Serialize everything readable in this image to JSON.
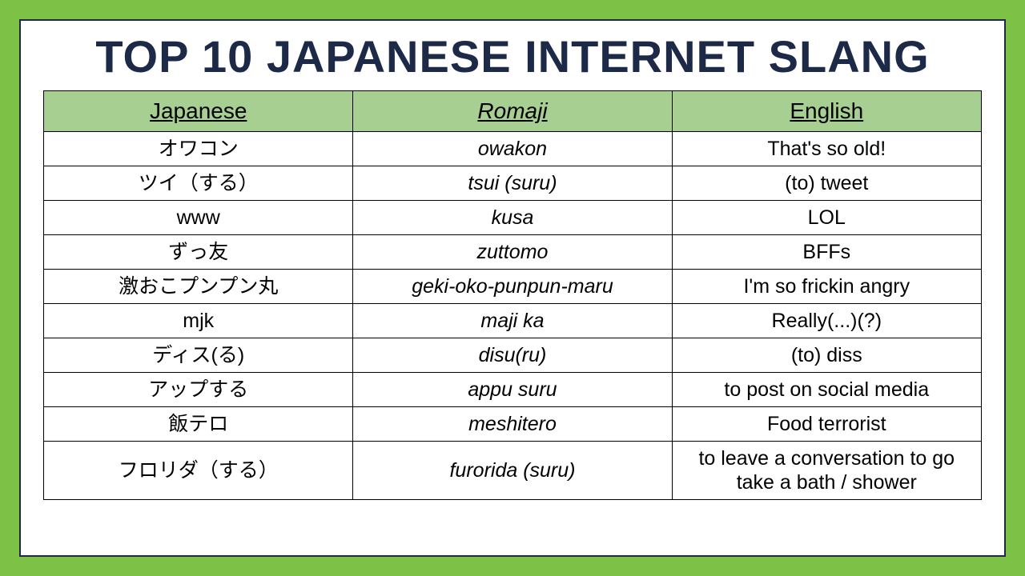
{
  "title": "TOP 10 JAPANESE INTERNET SLANG",
  "colors": {
    "outer_bg": "#7dc147",
    "panel_bg": "#ffffff",
    "panel_border": "#1c2a48",
    "title_color": "#1c2a48",
    "header_bg": "#a6cf91",
    "cell_border": "#000000",
    "text_color": "#000000"
  },
  "typography": {
    "title_fontsize": 56,
    "title_weight": 900,
    "header_fontsize": 28,
    "cell_fontsize": 25,
    "font_family": "Arial"
  },
  "table": {
    "columns": [
      {
        "label": "Japanese",
        "italic": false,
        "width_pct": 33
      },
      {
        "label": "Romaji",
        "italic": true,
        "width_pct": 34
      },
      {
        "label": "English",
        "italic": false,
        "width_pct": 33
      }
    ],
    "rows": [
      {
        "japanese": "オワコン",
        "romaji": "owakon",
        "english": "That's so old!"
      },
      {
        "japanese": "ツイ（する）",
        "romaji": "tsui (suru)",
        "english": "(to) tweet"
      },
      {
        "japanese": "www",
        "romaji": "kusa",
        "english": "LOL"
      },
      {
        "japanese": "ずっ友",
        "romaji": "zuttomo",
        "english": "BFFs"
      },
      {
        "japanese": "激おこプンプン丸",
        "romaji": "geki-oko-punpun-maru",
        "english": "I'm so frickin angry"
      },
      {
        "japanese": "mjk",
        "romaji": "maji ka",
        "english": "Really(...)(?)"
      },
      {
        "japanese": "ディス(る)",
        "romaji": "disu(ru)",
        "english": "(to) diss"
      },
      {
        "japanese": "アップする",
        "romaji": "appu suru",
        "english": "to post on social media"
      },
      {
        "japanese": "飯テロ",
        "romaji": "meshitero",
        "english": "Food terrorist"
      },
      {
        "japanese": "フロリダ（する）",
        "romaji": "furorida (suru)",
        "english": "to leave a conversation to go take a bath / shower"
      }
    ]
  }
}
